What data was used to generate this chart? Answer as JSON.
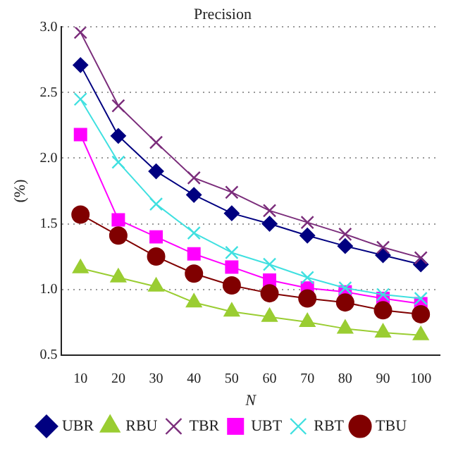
{
  "chart_data": {
    "type": "line",
    "title": "Precision",
    "xlabel": "N",
    "ylabel": "(%)",
    "x": [
      10,
      20,
      30,
      40,
      50,
      60,
      70,
      80,
      90,
      100
    ],
    "xlim": [
      5,
      105
    ],
    "xticks": [
      10,
      20,
      30,
      40,
      50,
      60,
      70,
      80,
      90,
      100
    ],
    "ylim": [
      0.5,
      3.0
    ],
    "yticks": [
      {
        "value": 0.5,
        "label": "0.5"
      },
      {
        "value": 1.0,
        "label": "1.0"
      },
      {
        "value": 1.5,
        "label": "1.5"
      },
      {
        "value": 2.0,
        "label": "2.0"
      },
      {
        "value": 2.5,
        "label": "2.5"
      },
      {
        "value": 3.0,
        "label": "3.0"
      }
    ],
    "grid": "y",
    "legend": "bottom",
    "line_style": "solid",
    "series": [
      {
        "name": "UBR",
        "color": "#000080",
        "marker": "diamond",
        "values": [
          2.71,
          2.17,
          1.9,
          1.72,
          1.58,
          1.5,
          1.41,
          1.33,
          1.26,
          1.19
        ]
      },
      {
        "name": "RBU",
        "color": "#9acd32",
        "marker": "triangle",
        "values": [
          1.16,
          1.09,
          1.02,
          0.9,
          0.83,
          0.79,
          0.75,
          0.7,
          0.67,
          0.65
        ]
      },
      {
        "name": "TBR",
        "color": "#7b2d7b",
        "marker": "cross",
        "values": [
          2.96,
          2.4,
          2.12,
          1.85,
          1.74,
          1.6,
          1.51,
          1.42,
          1.32,
          1.24
        ]
      },
      {
        "name": "UBT",
        "color": "#ff00ff",
        "marker": "square",
        "values": [
          2.18,
          1.53,
          1.4,
          1.27,
          1.17,
          1.07,
          1.01,
          0.98,
          0.93,
          0.89
        ]
      },
      {
        "name": "RBT",
        "color": "#40e0e0",
        "marker": "cross",
        "values": [
          2.45,
          1.97,
          1.65,
          1.43,
          1.28,
          1.19,
          1.09,
          1.01,
          0.96,
          0.93
        ]
      },
      {
        "name": "TBU",
        "color": "#800000",
        "marker": "circle",
        "values": [
          1.57,
          1.41,
          1.25,
          1.12,
          1.03,
          0.97,
          0.93,
          0.9,
          0.84,
          0.81
        ]
      }
    ]
  }
}
